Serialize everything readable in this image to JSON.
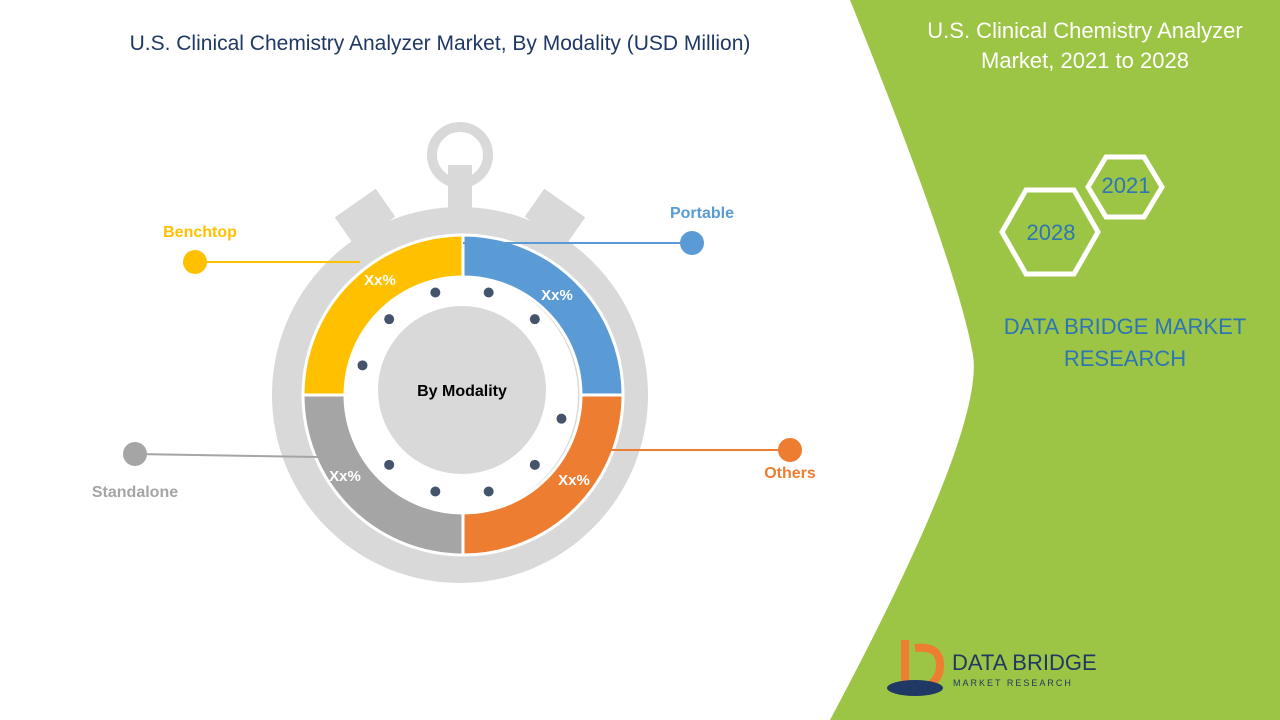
{
  "title": "U.S. Clinical Chemistry Analyzer Market, By Modality (USD Million)",
  "side_panel": {
    "title": "U.S. Clinical Chemistry Analyzer Market, 2021 to 2028",
    "years": [
      "2021",
      "2028"
    ],
    "brand": "DATA BRIDGE MARKET RESEARCH"
  },
  "diagram": {
    "center_label": "By Modality",
    "segments": [
      {
        "name": "Benchtop",
        "label": "Xx%",
        "color": "#ffc000"
      },
      {
        "name": "Portable",
        "label": "Xx%",
        "color": "#5b9bd5"
      },
      {
        "name": "Others",
        "label": "Xx%",
        "color": "#ed7d31"
      },
      {
        "name": "Standalone",
        "label": "Xx%",
        "color": "#a5a5a5"
      }
    ]
  },
  "logo": {
    "name": "DATA BRIDGE",
    "tagline": "MARKET RESEARCH"
  }
}
